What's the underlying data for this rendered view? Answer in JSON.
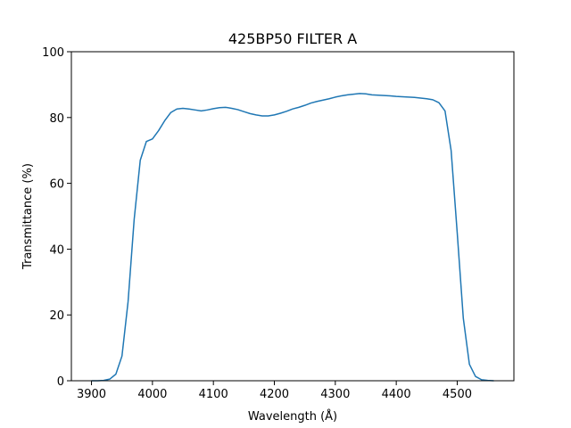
{
  "chart_data": {
    "type": "line",
    "title": "425BP50 FILTER A",
    "x_label": "Wavelength (Å)",
    "y_label": "Transmittance (%)",
    "x": [
      3900,
      3910,
      3920,
      3930,
      3940,
      3950,
      3960,
      3970,
      3980,
      3990,
      4000,
      4010,
      4020,
      4030,
      4040,
      4050,
      4060,
      4070,
      4080,
      4090,
      4100,
      4110,
      4120,
      4130,
      4140,
      4150,
      4160,
      4170,
      4180,
      4190,
      4200,
      4210,
      4220,
      4230,
      4240,
      4250,
      4260,
      4270,
      4280,
      4290,
      4300,
      4310,
      4320,
      4330,
      4340,
      4350,
      4360,
      4370,
      4380,
      4390,
      4400,
      4410,
      4420,
      4430,
      4440,
      4450,
      4460,
      4470,
      4480,
      4490,
      4500,
      4510,
      4520,
      4530,
      4540,
      4550,
      4560
    ],
    "series": [
      {
        "name": "425BP50 FILTER A",
        "color": "#1f77b4",
        "values": [
          0,
          0,
          0.1,
          0.5,
          2,
          7.5,
          24,
          49,
          67,
          72.7,
          73.5,
          76,
          79,
          81.5,
          82.6,
          82.8,
          82.6,
          82.3,
          82,
          82.3,
          82.7,
          83,
          83.1,
          82.8,
          82.4,
          81.8,
          81.2,
          80.8,
          80.5,
          80.5,
          80.8,
          81.3,
          81.9,
          82.6,
          83.1,
          83.7,
          84.4,
          84.9,
          85.3,
          85.7,
          86.2,
          86.6,
          86.9,
          87.1,
          87.3,
          87.2,
          86.9,
          86.8,
          86.7,
          86.6,
          86.4,
          86.3,
          86.2,
          86.1,
          85.9,
          85.7,
          85.4,
          84.5,
          82,
          70,
          45,
          19,
          5,
          1.3,
          0.3,
          0.1,
          0
        ]
      }
    ],
    "xlim": [
      3867,
      4593
    ],
    "ylim": [
      0,
      100
    ],
    "xticks": [
      3900,
      4000,
      4100,
      4200,
      4300,
      4400,
      4500
    ],
    "yticks": [
      0,
      20,
      40,
      60,
      80,
      100
    ]
  }
}
